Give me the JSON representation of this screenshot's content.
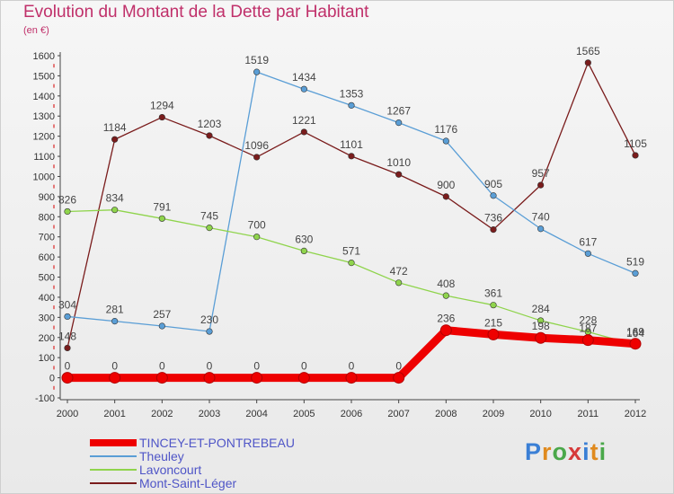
{
  "title": "Evolution du Montant de la Dette par Habitant",
  "unit": "(en €)",
  "brand": "Proxiti",
  "chart_data": {
    "type": "line",
    "title": "Evolution du Montant de la Dette par Habitant",
    "ylabel": "(en €)",
    "xlabel": "",
    "x": [
      "2000",
      "2001",
      "2002",
      "2003",
      "2004",
      "2005",
      "2006",
      "2007",
      "2008",
      "2009",
      "2010",
      "2011",
      "2012"
    ],
    "ylim": [
      -100,
      1600
    ],
    "yticks": [
      -100,
      0,
      100,
      200,
      300,
      400,
      500,
      600,
      700,
      800,
      900,
      1000,
      1100,
      1200,
      1300,
      1400,
      1500,
      1600
    ],
    "grid": false,
    "legend": "bottom",
    "series": [
      {
        "name": "TINCEY-ET-PONTREBEAU",
        "color": "#ee0000",
        "values": [
          0,
          0,
          0,
          0,
          0,
          0,
          0,
          0,
          236,
          215,
          198,
          187,
          169
        ],
        "labels": [
          "0",
          "0",
          "0",
          "0",
          "0",
          "0",
          "0",
          "0",
          "236",
          "215",
          "198",
          "187",
          "169"
        ]
      },
      {
        "name": "Theuley",
        "color": "#5a9ed6",
        "values": [
          304,
          281,
          257,
          230,
          1519,
          1434,
          1353,
          1267,
          1176,
          905,
          740,
          617,
          519
        ],
        "labels": [
          "304",
          "281",
          "257",
          "230",
          "1519",
          "1434",
          "1353",
          "1267",
          "1176",
          "905",
          "740",
          "617",
          "519"
        ]
      },
      {
        "name": "Lavoncourt",
        "color": "#8fd44c",
        "values": [
          826,
          834,
          791,
          745,
          700,
          630,
          571,
          472,
          408,
          361,
          284,
          228,
          164
        ],
        "labels": [
          "826",
          "834",
          "791",
          "745",
          "700",
          "630",
          "571",
          "472",
          "408",
          "361",
          "284",
          "228",
          "164"
        ]
      },
      {
        "name": "Mont-Saint-Léger",
        "color": "#7a1c1c",
        "values": [
          148,
          1184,
          1294,
          1203,
          1096,
          1221,
          1101,
          1010,
          900,
          736,
          957,
          1565,
          1105
        ],
        "labels": [
          "148",
          "1184",
          "1294",
          "1203",
          "1096",
          "1221",
          "1101",
          "1010",
          "900",
          "736",
          "957",
          "1565",
          "1105"
        ]
      }
    ]
  }
}
